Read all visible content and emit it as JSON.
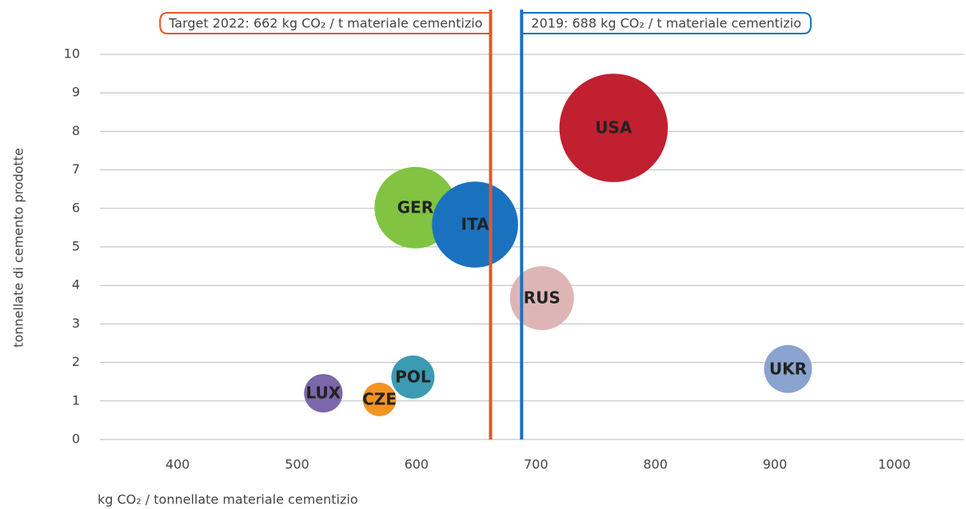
{
  "chart_data": {
    "type": "bubble",
    "xlabel": "kg CO₂ / tonnellate materiale cementizio",
    "ylabel": "tonnellate di cemento prodotte",
    "xlim": [
      335,
      1058
    ],
    "xticks": [
      400,
      500,
      600,
      700,
      800,
      900,
      1000
    ],
    "ylim": [
      0,
      10
    ],
    "yticks": [
      0,
      1,
      2,
      3,
      4,
      5,
      6,
      7,
      8,
      9,
      10
    ],
    "grid": true,
    "points": [
      {
        "label": "USA",
        "color": "#c0202f",
        "x": 765,
        "y": 8.09,
        "size": 46
      },
      {
        "label": "GER",
        "color": "#82c341",
        "x": 599,
        "y": 6.02,
        "size": 26
      },
      {
        "label": "ITA",
        "color": "#1a72bf",
        "x": 649,
        "y": 5.58,
        "size": 29
      },
      {
        "label": "RUS",
        "color": "#deb5b5",
        "x": 705,
        "y": 3.67,
        "size": 16
      },
      {
        "label": "UKR",
        "color": "#8aa3cf",
        "x": 911,
        "y": 1.83,
        "size": 9
      },
      {
        "label": "POL",
        "color": "#3a9bb3",
        "x": 597,
        "y": 1.62,
        "size": 7.3
      },
      {
        "label": "LUX",
        "color": "#7b67a9",
        "x": 522,
        "y": 1.2,
        "size": 5.8
      },
      {
        "label": "CZE",
        "color": "#f39323",
        "x": 569,
        "y": 1.04,
        "size": 4.4
      }
    ],
    "reference_lines": [
      {
        "value": 662,
        "label": "Target 2022: 662 kg CO₂ / t materiale cementizio",
        "color": "#e8552a",
        "side": "left"
      },
      {
        "value": 688,
        "label": "2019: 688 kg CO₂ / t materiale cementizio",
        "color": "#1a72bf",
        "side": "right"
      }
    ]
  }
}
